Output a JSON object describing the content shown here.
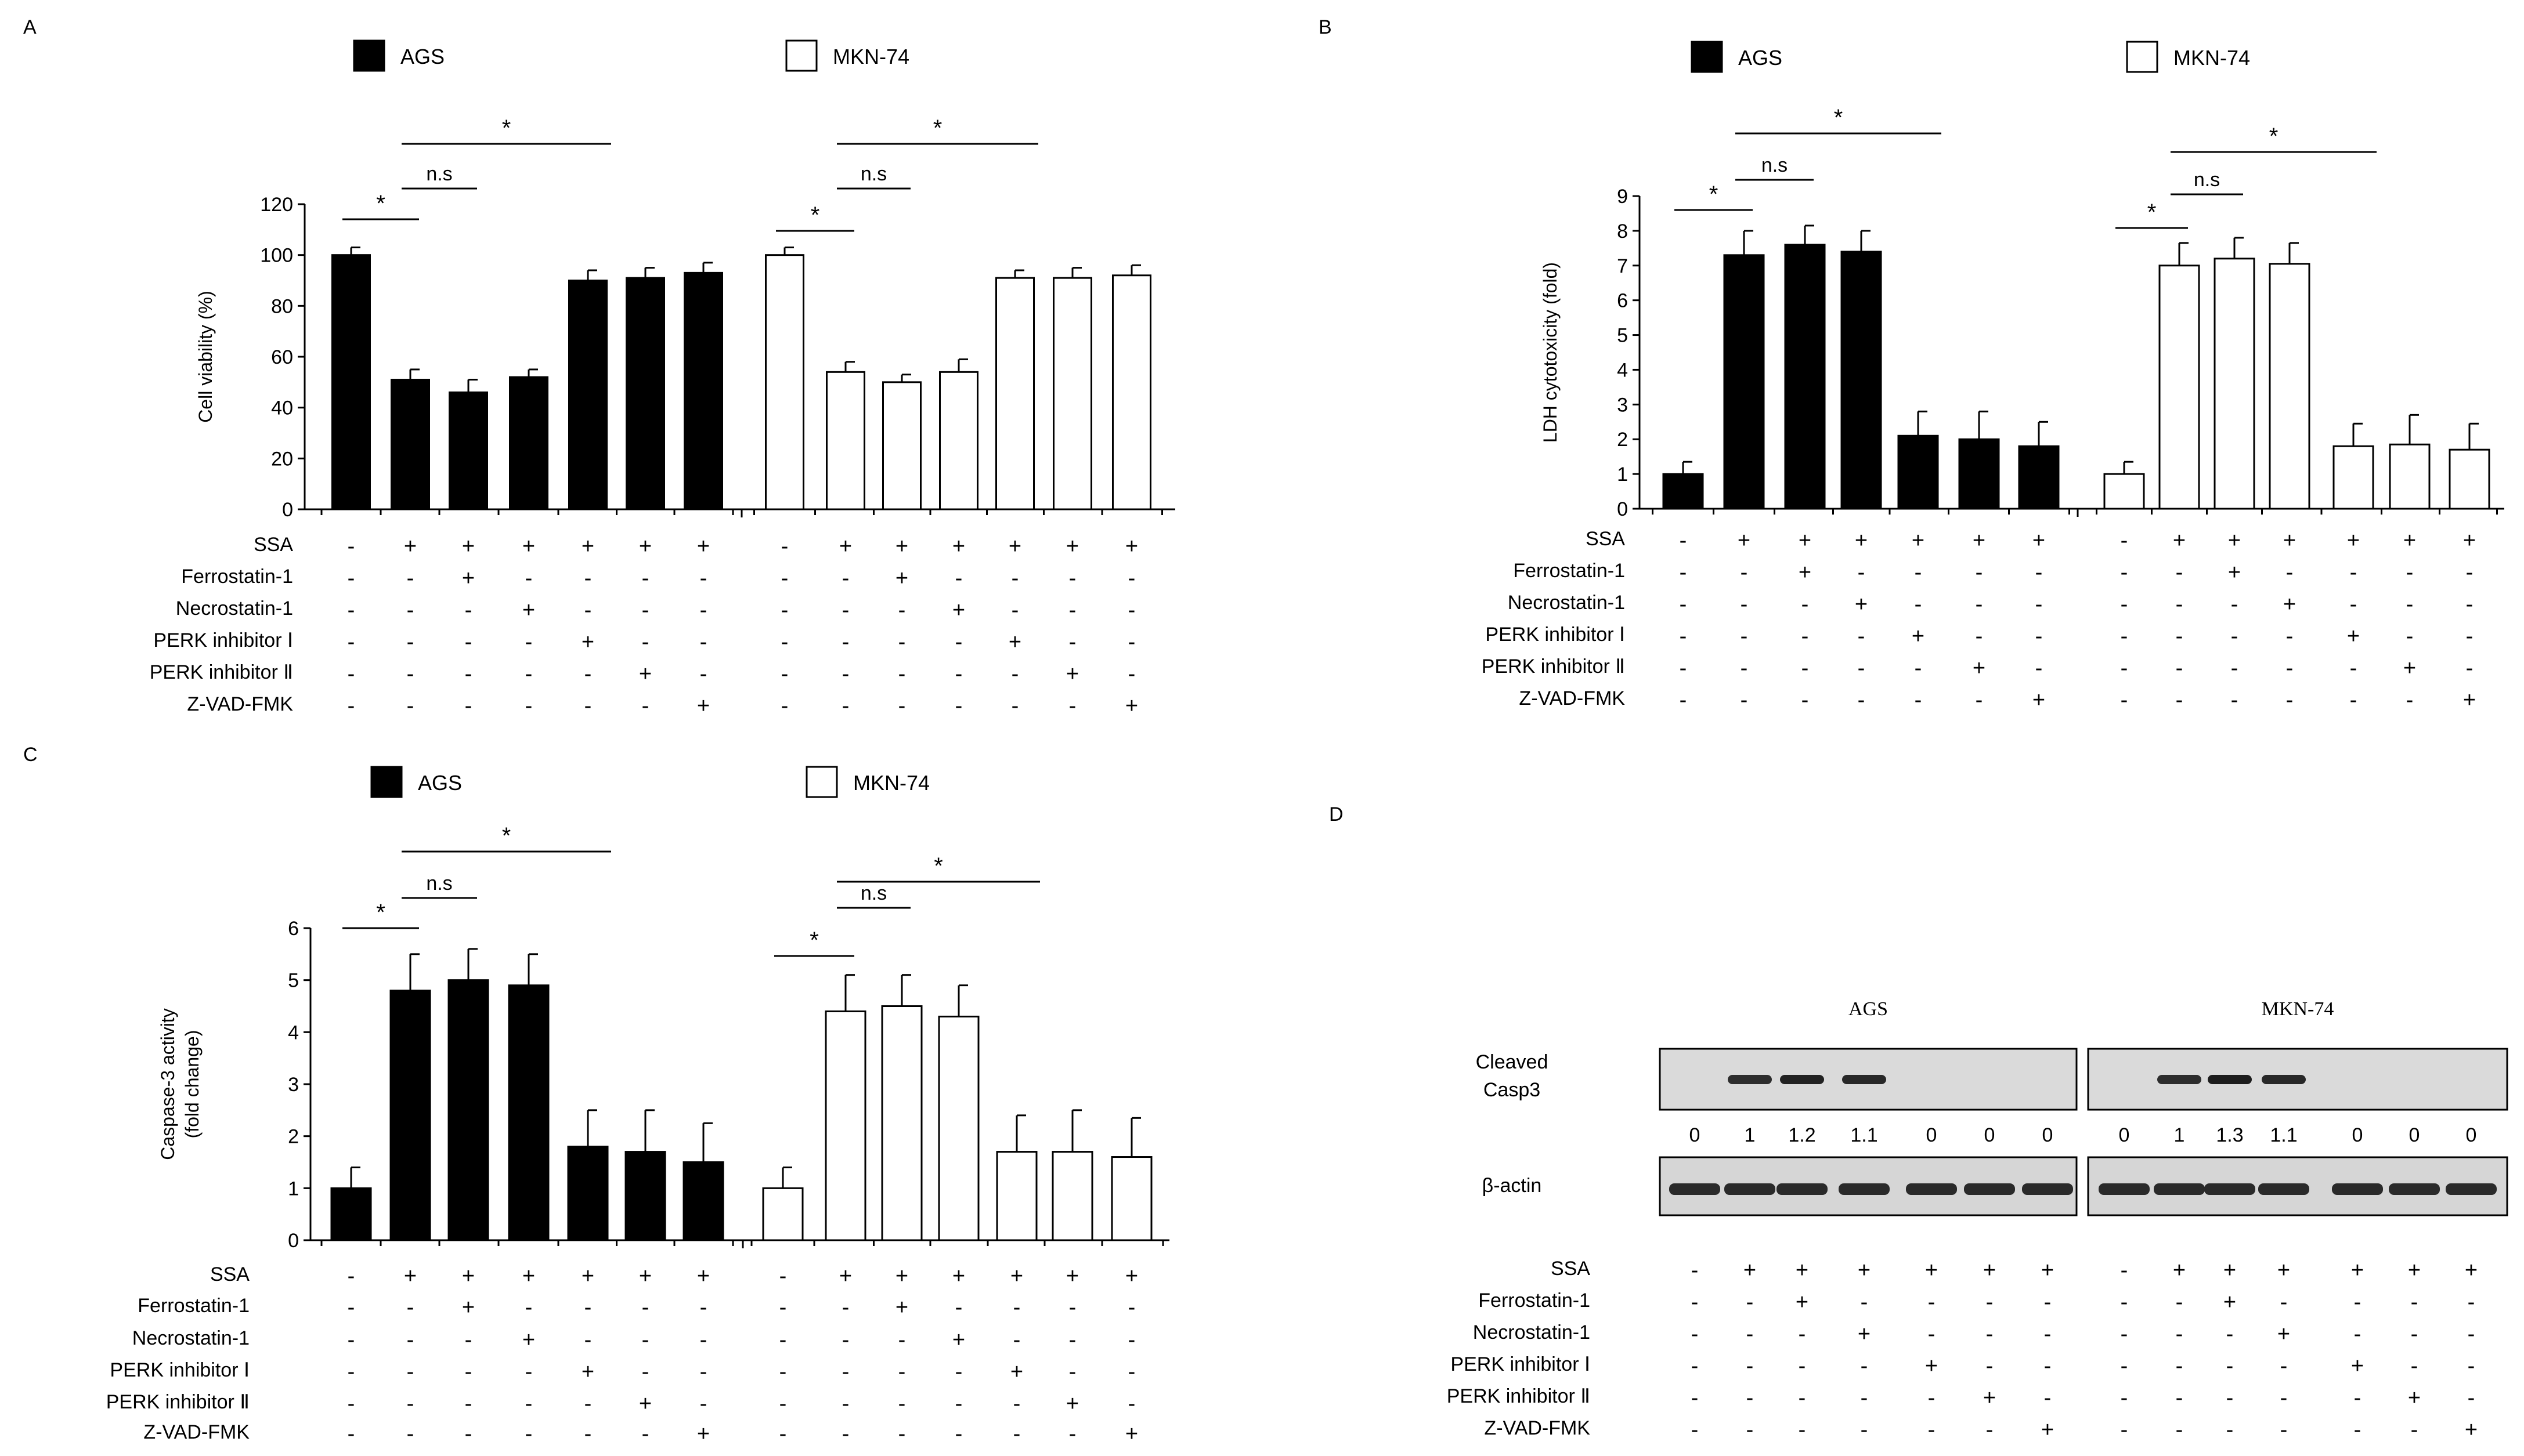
{
  "panel_labels": [
    "A",
    "B",
    "C",
    "D"
  ],
  "legend": {
    "filled": "AGS",
    "open": "MKN-74"
  },
  "condition_rows": [
    "SSA",
    "Ferrostatin-1",
    "Necrostatin-1",
    "PERK  inhibitor Ⅰ",
    "PERK  inhibitor Ⅱ",
    "Z-VAD-FMK"
  ],
  "condition_matrix": [
    [
      "-",
      "+",
      "+",
      "+",
      "+",
      "+",
      "+"
    ],
    [
      "-",
      "-",
      "+",
      "-",
      "-",
      "-",
      "-"
    ],
    [
      "-",
      "-",
      "-",
      "+",
      "-",
      "-",
      "-"
    ],
    [
      "-",
      "-",
      "-",
      "-",
      "+",
      "-",
      "-"
    ],
    [
      "-",
      "-",
      "-",
      "-",
      "-",
      "+",
      "-"
    ],
    [
      "-",
      "-",
      "-",
      "-",
      "-",
      "-",
      "+"
    ]
  ],
  "chart_data": [
    {
      "panel": "A",
      "type": "bar",
      "ylabel": "Cell viability (%)",
      "ylim": [
        0,
        120
      ],
      "yticks": [
        0,
        20,
        40,
        60,
        80,
        100,
        120
      ],
      "series": [
        {
          "name": "AGS",
          "values": [
            100,
            51,
            46,
            52,
            90,
            91,
            93
          ],
          "errors": [
            3,
            4,
            5,
            3,
            4,
            4,
            4
          ]
        },
        {
          "name": "MKN-74",
          "values": [
            100,
            54,
            50,
            54,
            91,
            91,
            92
          ],
          "errors": [
            3,
            4,
            3,
            5,
            3,
            4,
            4
          ]
        }
      ],
      "annotations": [
        {
          "series": 0,
          "from": 0,
          "to": 1,
          "label": "*"
        },
        {
          "series": 0,
          "from": 1,
          "to": 2,
          "label": "n.s"
        },
        {
          "series": 0,
          "from": 1,
          "to": 4,
          "label": "*"
        },
        {
          "series": 1,
          "from": 0,
          "to": 1,
          "label": "*"
        },
        {
          "series": 1,
          "from": 1,
          "to": 2,
          "label": "n.s"
        },
        {
          "series": 1,
          "from": 1,
          "to": 4,
          "label": "*"
        }
      ]
    },
    {
      "panel": "B",
      "type": "bar",
      "ylabel": "LDH cytotoxicity (fold)",
      "ylim": [
        0,
        9
      ],
      "yticks": [
        0,
        1,
        2,
        3,
        4,
        5,
        6,
        7,
        8,
        9
      ],
      "series": [
        {
          "name": "AGS",
          "values": [
            1.0,
            7.3,
            7.6,
            7.4,
            2.1,
            2.0,
            1.8
          ],
          "errors": [
            0.35,
            0.7,
            0.55,
            0.6,
            0.7,
            0.8,
            0.7
          ]
        },
        {
          "name": "MKN-74",
          "values": [
            1.0,
            7.0,
            7.2,
            7.05,
            1.8,
            1.85,
            1.7
          ],
          "errors": [
            0.35,
            0.65,
            0.6,
            0.6,
            0.65,
            0.85,
            0.75
          ]
        }
      ],
      "annotations": [
        {
          "series": 0,
          "from": 0,
          "to": 1,
          "label": "*"
        },
        {
          "series": 0,
          "from": 1,
          "to": 2,
          "label": "n.s"
        },
        {
          "series": 0,
          "from": 1,
          "to": 4,
          "label": "*"
        },
        {
          "series": 1,
          "from": 0,
          "to": 1,
          "label": "*"
        },
        {
          "series": 1,
          "from": 1,
          "to": 2,
          "label": "n.s"
        },
        {
          "series": 1,
          "from": 1,
          "to": 4,
          "label": "*"
        }
      ]
    },
    {
      "panel": "C",
      "type": "bar",
      "ylabel": "Caspase-3 activity",
      "ylabel2": "(fold change)",
      "ylim": [
        0,
        6
      ],
      "yticks": [
        0,
        1,
        2,
        3,
        4,
        5,
        6
      ],
      "series": [
        {
          "name": "AGS",
          "values": [
            1.0,
            4.8,
            5.0,
            4.9,
            1.8,
            1.7,
            1.5
          ],
          "errors": [
            0.4,
            0.7,
            0.6,
            0.6,
            0.7,
            0.8,
            0.75
          ]
        },
        {
          "name": "MKN-74",
          "values": [
            1.0,
            4.4,
            4.5,
            4.3,
            1.7,
            1.7,
            1.6
          ],
          "errors": [
            0.4,
            0.7,
            0.6,
            0.6,
            0.7,
            0.8,
            0.75
          ]
        }
      ],
      "annotations": [
        {
          "series": 0,
          "from": 0,
          "to": 1,
          "label": "*"
        },
        {
          "series": 0,
          "from": 1,
          "to": 2,
          "label": "n.s"
        },
        {
          "series": 0,
          "from": 1,
          "to": 4,
          "label": "*"
        },
        {
          "series": 1,
          "from": 0,
          "to": 1,
          "label": "*"
        },
        {
          "series": 1,
          "from": 1,
          "to": 2,
          "label": "n.s"
        },
        {
          "series": 1,
          "from": 1,
          "to": 4,
          "label": "*"
        }
      ]
    }
  ],
  "western_blot": {
    "panel": "D",
    "groups": [
      "AGS",
      "MKN-74"
    ],
    "rows": [
      {
        "label_line1": "Cleaved",
        "label_line2": "Casp3"
      },
      {
        "label_line1": "β-actin",
        "label_line2": ""
      }
    ],
    "casp3_quant": {
      "AGS": [
        "0",
        "1",
        "1.2",
        "1.1",
        "0",
        "0",
        "0"
      ],
      "MKN-74": [
        "0",
        "1",
        "1.3",
        "1.1",
        "0",
        "0",
        "0"
      ]
    },
    "casp3_intensity": {
      "AGS": [
        0,
        1,
        1.2,
        1.1,
        0,
        0,
        0
      ],
      "MKN-74": [
        0,
        1,
        1.3,
        1.1,
        0,
        0,
        0
      ]
    }
  }
}
